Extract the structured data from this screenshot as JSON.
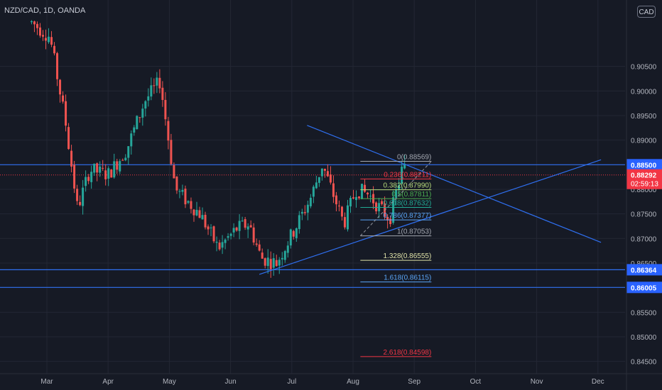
{
  "symbol_title": "NZD/CAD, 1D, OANDA",
  "currency_label": "CAD",
  "colors": {
    "background": "#161a25",
    "grid": "#232734",
    "up": "#26a69a",
    "down": "#ef5350",
    "trendline": "#2f6ff0",
    "level_tag": "#2962ff",
    "price_tag": "#f23645"
  },
  "chart_data": {
    "type": "candlestick",
    "y_axis": {
      "range": [
        0.8425,
        0.9185
      ],
      "ticks": [
        "0.90500",
        "0.90000",
        "0.89500",
        "0.89000",
        "0.88500",
        "0.88000",
        "0.87500",
        "0.87000",
        "0.86500",
        "0.86000",
        "0.85500",
        "0.85000",
        "0.84500"
      ],
      "tick_values": [
        0.905,
        0.9,
        0.895,
        0.89,
        0.885,
        0.88,
        0.875,
        0.87,
        0.865,
        0.86,
        0.855,
        0.85,
        0.845
      ]
    },
    "x_axis": {
      "labels": [
        "Mar",
        "Apr",
        "May",
        "Jun",
        "Jul",
        "Aug",
        "Sep",
        "Oct",
        "Nov",
        "Dec"
      ],
      "month_index": [
        0,
        1,
        2,
        3,
        4,
        5,
        6,
        7,
        8,
        9
      ]
    },
    "price_path": [
      [
        -0.25,
        0.914
      ],
      [
        0.05,
        0.911
      ],
      [
        0.3,
        0.894
      ],
      [
        0.5,
        0.876
      ],
      [
        0.7,
        0.884
      ],
      [
        1.0,
        0.883
      ],
      [
        1.3,
        0.888
      ],
      [
        1.6,
        0.898
      ],
      [
        1.85,
        0.902
      ],
      [
        2.1,
        0.88
      ],
      [
        2.5,
        0.875
      ],
      [
        2.8,
        0.868
      ],
      [
        3.1,
        0.872
      ],
      [
        3.3,
        0.873
      ],
      [
        3.5,
        0.866
      ],
      [
        3.75,
        0.865
      ],
      [
        4.05,
        0.872
      ],
      [
        4.3,
        0.878
      ],
      [
        4.5,
        0.885
      ],
      [
        4.85,
        0.873
      ],
      [
        5.05,
        0.88
      ],
      [
        5.25,
        0.879
      ],
      [
        5.45,
        0.876
      ],
      [
        5.6,
        0.874
      ],
      [
        5.8,
        0.884
      ],
      [
        5.88,
        0.8845
      ]
    ],
    "horizontal_levels": [
      {
        "price": 0.885,
        "label": "0.88500"
      },
      {
        "price": 0.86364,
        "label": "0.86364"
      },
      {
        "price": 0.86005,
        "label": "0.86005"
      }
    ],
    "last_price": {
      "price": 0.88292,
      "label": "0.88292",
      "countdown": "02:59:13"
    },
    "trendlines": [
      {
        "from": [
          4.25,
          0.893
        ],
        "to": [
          9.05,
          0.8692
        ]
      },
      {
        "from": [
          3.47,
          0.8627
        ],
        "to": [
          9.05,
          0.886
        ]
      }
    ],
    "fibonacci": {
      "x_start": 5.12,
      "x_end": 6.28,
      "label_x": 6.28,
      "levels": [
        {
          "ratio": "0",
          "price": 0.88569,
          "text": "0(0.88569)",
          "color": "#a3a7b0"
        },
        {
          "ratio": "0.236",
          "price": 0.88211,
          "text": "0.236(0.88211)",
          "color": "#f23645"
        },
        {
          "ratio": "0.382",
          "price": 0.8799,
          "text": "0.382(0.87990)",
          "color": "#b5d87a"
        },
        {
          "ratio": "0.5",
          "price": 0.87811,
          "text": "0.5(0.87811)",
          "color": "#4caf50"
        },
        {
          "ratio": "0.618",
          "price": 0.87632,
          "text": "0.618(0.87632)",
          "color": "#22ab94"
        },
        {
          "ratio": "0.786",
          "price": 0.87377,
          "text": "0.786(0.87377)",
          "color": "#5aa5f6"
        },
        {
          "ratio": "1",
          "price": 0.87053,
          "text": "1(0.87053)",
          "color": "#a3a7b0"
        },
        {
          "ratio": "1.328",
          "price": 0.86555,
          "text": "1.328(0.86555)",
          "color": "#e0e3a8"
        },
        {
          "ratio": "1.618",
          "price": 0.86115,
          "text": "1.618(0.86115)",
          "color": "#5aa5f6"
        },
        {
          "ratio": "2.618",
          "price": 0.84598,
          "text": "2.618(0.84598)",
          "color": "#f23645"
        }
      ],
      "trend_line": {
        "from": [
          5.12,
          0.87053
        ],
        "to": [
          6.28,
          0.88569
        ]
      }
    }
  }
}
